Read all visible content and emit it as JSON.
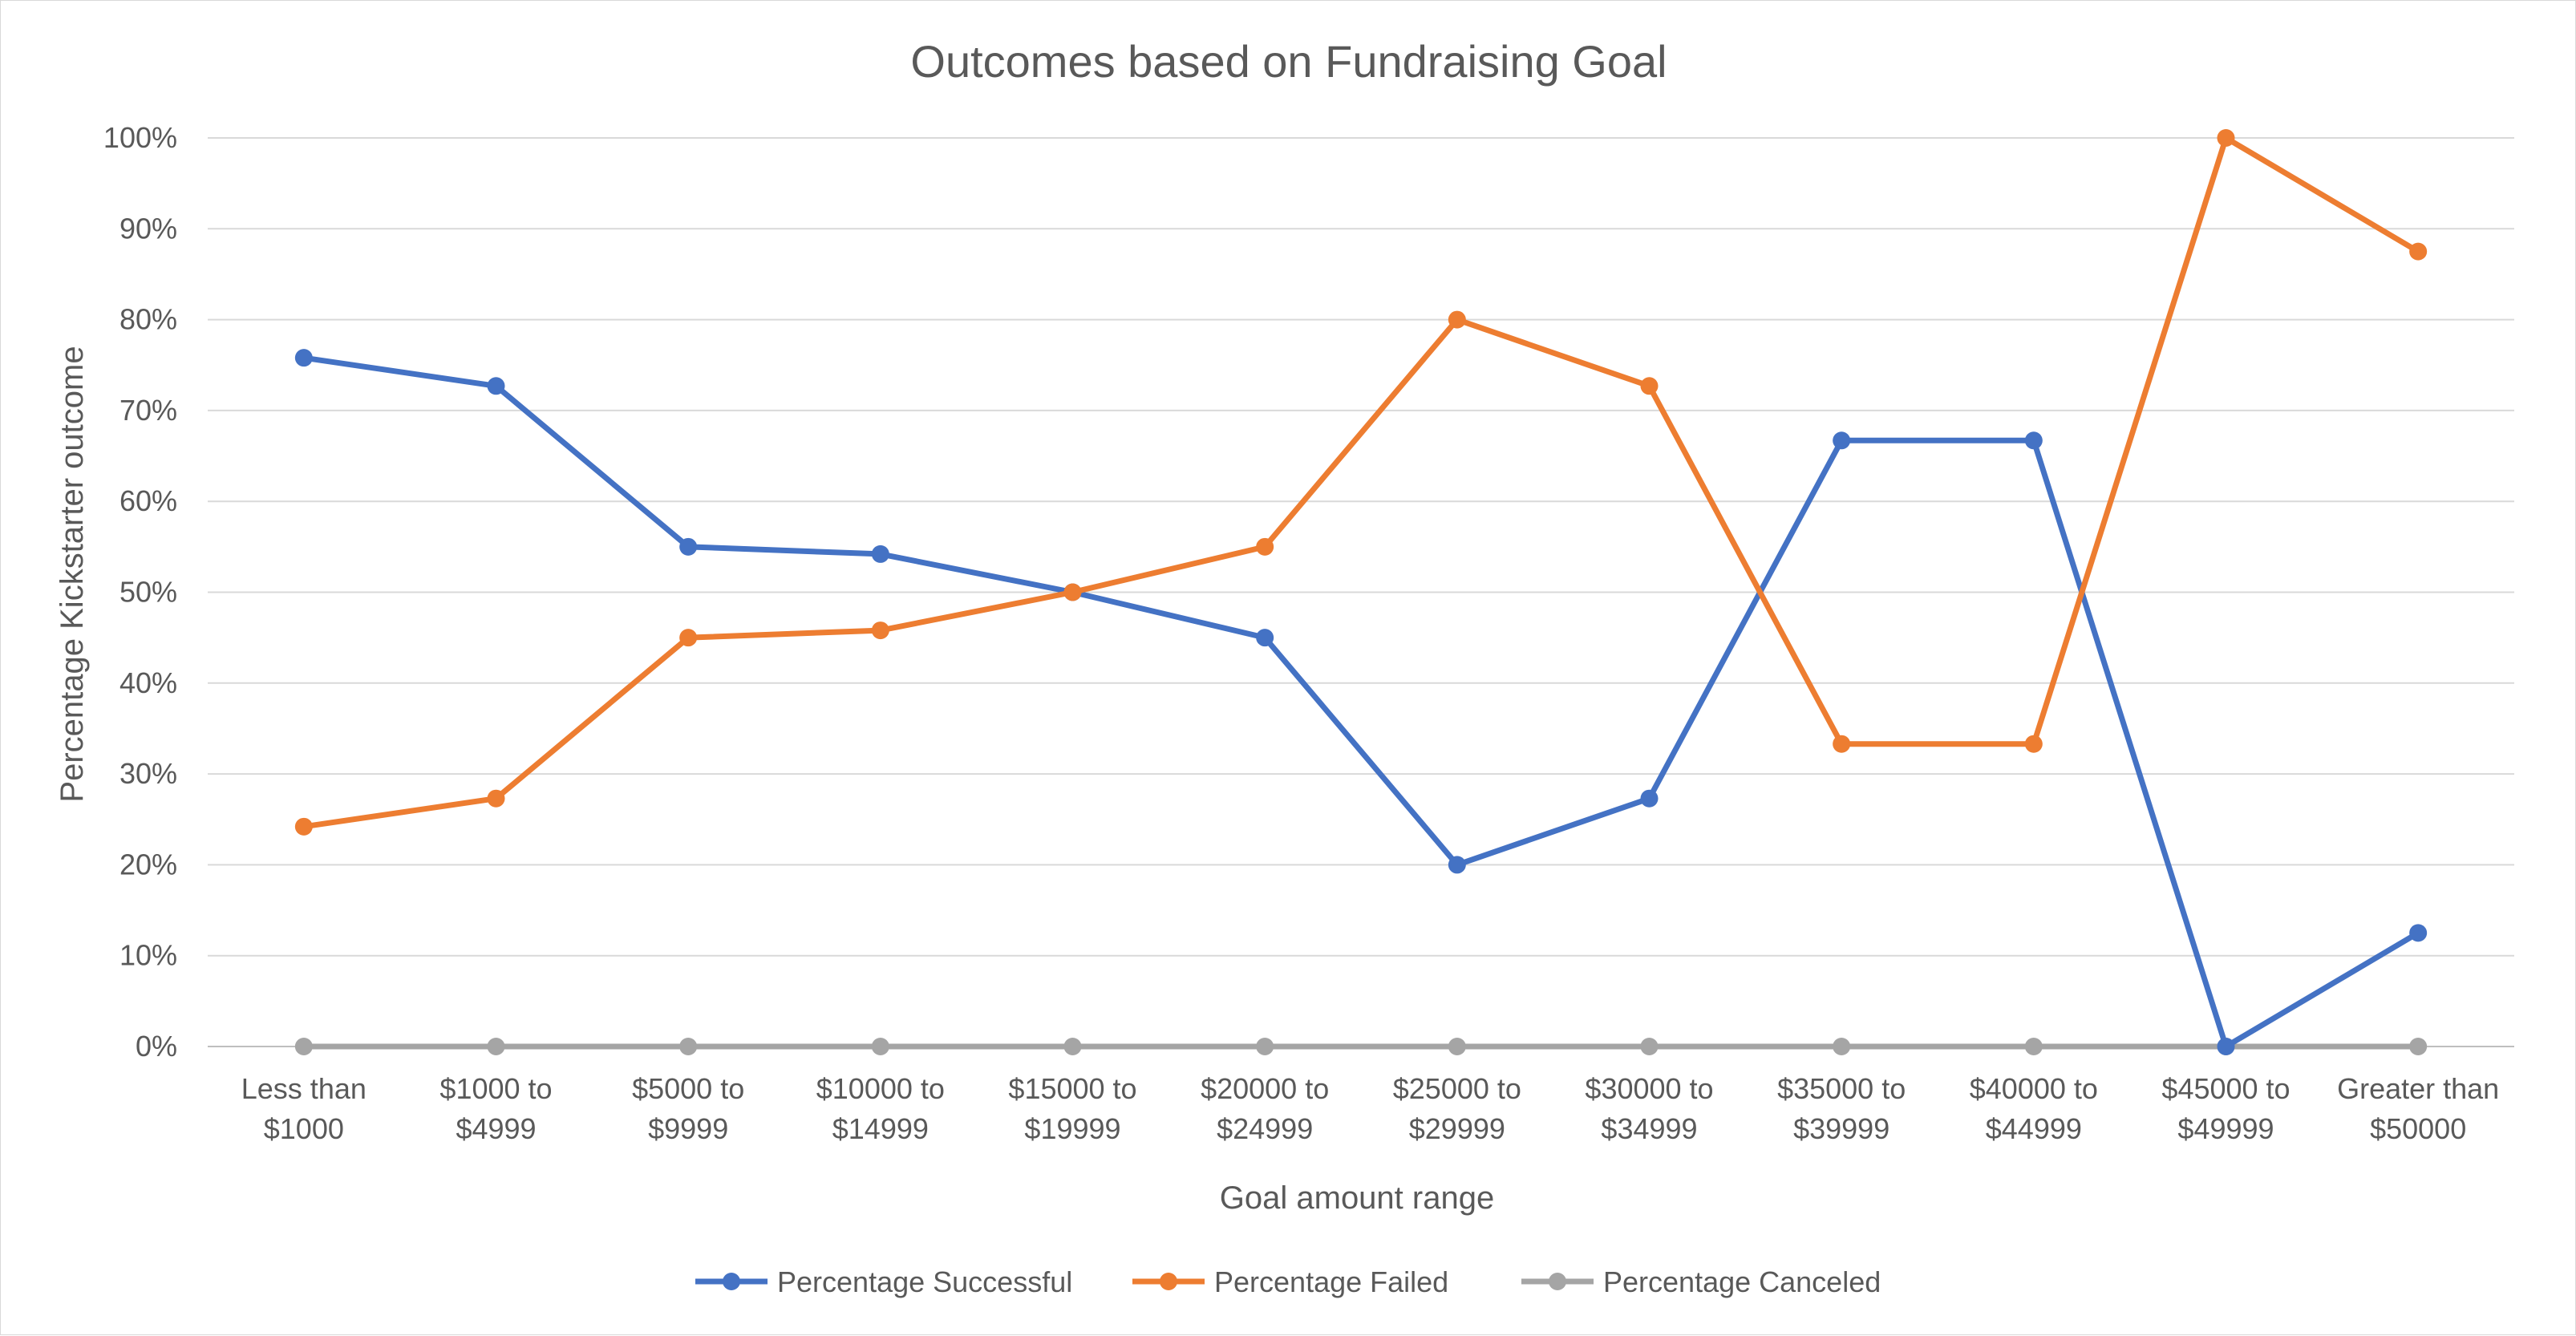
{
  "chart_data": {
    "type": "line",
    "title": "Outcomes based on Fundraising Goal",
    "xlabel": "Goal amount range",
    "ylabel": "Percentage Kickstarter outcome",
    "categories": [
      [
        "Less than",
        "$1000"
      ],
      [
        "$1000 to",
        "$4999"
      ],
      [
        "$5000 to",
        "$9999"
      ],
      [
        "$10000 to",
        "$14999"
      ],
      [
        "$15000 to",
        "$19999"
      ],
      [
        "$20000 to",
        "$24999"
      ],
      [
        "$25000 to",
        "$29999"
      ],
      [
        "$30000 to",
        "$34999"
      ],
      [
        "$35000 to",
        "$39999"
      ],
      [
        "$40000 to",
        "$44999"
      ],
      [
        "$45000 to",
        "$49999"
      ],
      [
        "Greater than",
        "$50000"
      ]
    ],
    "yticks": [
      "0%",
      "10%",
      "20%",
      "30%",
      "40%",
      "50%",
      "60%",
      "70%",
      "80%",
      "90%",
      "100%"
    ],
    "ylim": [
      0,
      100
    ],
    "grid": true,
    "legend_position": "bottom",
    "series": [
      {
        "name": "Percentage Successful",
        "color": "#4472c4",
        "values": [
          75.8,
          72.7,
          55.0,
          54.2,
          50.0,
          45.0,
          20.0,
          27.3,
          66.7,
          66.7,
          0.0,
          12.5
        ]
      },
      {
        "name": "Percentage Failed",
        "color": "#ed7d31",
        "values": [
          24.2,
          27.3,
          45.0,
          45.8,
          50.0,
          55.0,
          80.0,
          72.7,
          33.3,
          33.3,
          100.0,
          87.5
        ]
      },
      {
        "name": "Percentage Canceled",
        "color": "#a5a5a5",
        "values": [
          0,
          0,
          0,
          0,
          0,
          0,
          0,
          0,
          0,
          0,
          0,
          0
        ]
      }
    ]
  }
}
